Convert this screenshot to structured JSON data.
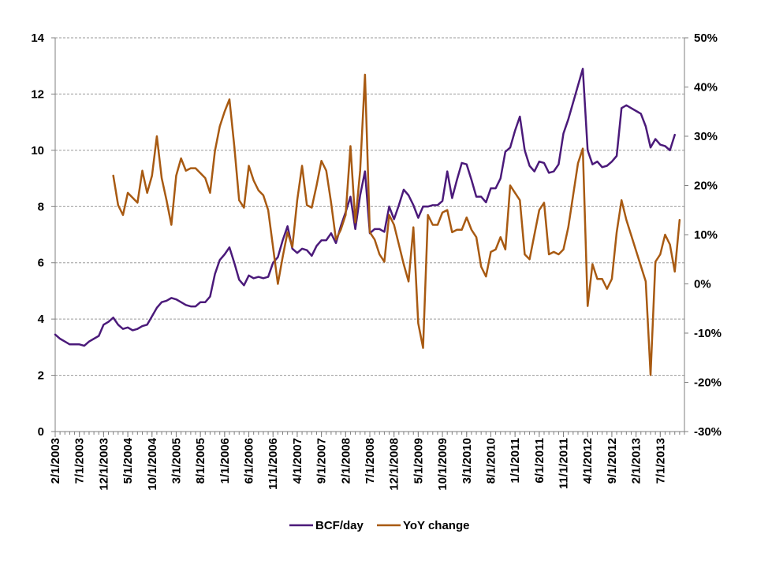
{
  "chart_data": {
    "type": "line",
    "title": "",
    "xlabel": "",
    "ylabel": "",
    "y2label": "",
    "grid": "horizontal-dashed",
    "legend_position": "bottom",
    "colors": {
      "bcf": "#4b1a7a",
      "yoy": "#a85a12",
      "grid": "#9a9a9a",
      "axis": "#7f7f7f"
    },
    "x_labels": [
      "2/1/2003",
      "7/1/2003",
      "12/1/2003",
      "5/1/2004",
      "10/1/2004",
      "3/1/2005",
      "8/1/2005",
      "1/1/2006",
      "6/1/2006",
      "11/1/2006",
      "4/1/2007",
      "9/1/2007",
      "2/1/2008",
      "7/1/2008",
      "12/1/2008",
      "5/1/2009",
      "10/1/2009",
      "3/1/2010",
      "8/1/2010",
      "1/1/2011",
      "6/1/2011",
      "11/1/2011",
      "4/1/2012",
      "9/1/2012",
      "2/1/2013",
      "7/1/2013"
    ],
    "y_left": {
      "min": 0,
      "max": 14,
      "ticks": [
        "0",
        "2",
        "4",
        "6",
        "8",
        "10",
        "12",
        "14"
      ]
    },
    "y_right": {
      "min": -30,
      "max": 50,
      "ticks": [
        "-30%",
        "-20%",
        "-10%",
        "0%",
        "10%",
        "20%",
        "30%",
        "40%",
        "50%"
      ]
    },
    "x_start": "2003-02",
    "x_end": "2013-12",
    "series": [
      {
        "name": "BCF/day",
        "axis": "left",
        "points": [
          [
            "2003-02",
            3.45
          ],
          [
            "2003-03",
            3.3
          ],
          [
            "2003-04",
            3.2
          ],
          [
            "2003-05",
            3.1
          ],
          [
            "2003-06",
            3.1
          ],
          [
            "2003-07",
            3.1
          ],
          [
            "2003-08",
            3.05
          ],
          [
            "2003-09",
            3.2
          ],
          [
            "2003-10",
            3.3
          ],
          [
            "2003-11",
            3.4
          ],
          [
            "2003-12",
            3.8
          ],
          [
            "2004-01",
            3.9
          ],
          [
            "2004-02",
            4.05
          ],
          [
            "2004-03",
            3.8
          ],
          [
            "2004-04",
            3.65
          ],
          [
            "2004-05",
            3.7
          ],
          [
            "2004-06",
            3.6
          ],
          [
            "2004-07",
            3.65
          ],
          [
            "2004-08",
            3.75
          ],
          [
            "2004-09",
            3.8
          ],
          [
            "2004-10",
            4.1
          ],
          [
            "2004-11",
            4.4
          ],
          [
            "2004-12",
            4.6
          ],
          [
            "2005-01",
            4.65
          ],
          [
            "2005-02",
            4.75
          ],
          [
            "2005-03",
            4.7
          ],
          [
            "2005-04",
            4.6
          ],
          [
            "2005-05",
            4.5
          ],
          [
            "2005-06",
            4.45
          ],
          [
            "2005-07",
            4.45
          ],
          [
            "2005-08",
            4.6
          ],
          [
            "2005-09",
            4.6
          ],
          [
            "2005-10",
            4.8
          ],
          [
            "2005-11",
            5.6
          ],
          [
            "2005-12",
            6.1
          ],
          [
            "2006-01",
            6.3
          ],
          [
            "2006-02",
            6.55
          ],
          [
            "2006-03",
            6.0
          ],
          [
            "2006-04",
            5.4
          ],
          [
            "2006-05",
            5.2
          ],
          [
            "2006-06",
            5.55
          ],
          [
            "2006-07",
            5.45
          ],
          [
            "2006-08",
            5.5
          ],
          [
            "2006-09",
            5.45
          ],
          [
            "2006-10",
            5.5
          ],
          [
            "2006-11",
            6.0
          ],
          [
            "2006-12",
            6.2
          ],
          [
            "2007-01",
            6.8
          ],
          [
            "2007-02",
            7.3
          ],
          [
            "2007-03",
            6.5
          ],
          [
            "2007-04",
            6.35
          ],
          [
            "2007-05",
            6.5
          ],
          [
            "2007-06",
            6.45
          ],
          [
            "2007-07",
            6.25
          ],
          [
            "2007-08",
            6.6
          ],
          [
            "2007-09",
            6.8
          ],
          [
            "2007-10",
            6.8
          ],
          [
            "2007-11",
            7.05
          ],
          [
            "2007-12",
            6.7
          ],
          [
            "2008-01",
            7.3
          ],
          [
            "2008-02",
            7.8
          ],
          [
            "2008-03",
            8.35
          ],
          [
            "2008-04",
            7.2
          ],
          [
            "2008-05",
            8.4
          ],
          [
            "2008-06",
            9.25
          ],
          [
            "2008-07",
            7.05
          ],
          [
            "2008-08",
            7.2
          ],
          [
            "2008-09",
            7.2
          ],
          [
            "2008-10",
            7.1
          ],
          [
            "2008-11",
            8.0
          ],
          [
            "2008-12",
            7.55
          ],
          [
            "2009-01",
            8.05
          ],
          [
            "2009-02",
            8.6
          ],
          [
            "2009-03",
            8.4
          ],
          [
            "2009-04",
            8.05
          ],
          [
            "2009-05",
            7.6
          ],
          [
            "2009-06",
            8.0
          ],
          [
            "2009-07",
            8.0
          ],
          [
            "2009-08",
            8.05
          ],
          [
            "2009-09",
            8.05
          ],
          [
            "2009-10",
            8.2
          ],
          [
            "2009-11",
            9.25
          ],
          [
            "2009-12",
            8.3
          ],
          [
            "2010-01",
            8.95
          ],
          [
            "2010-02",
            9.55
          ],
          [
            "2010-03",
            9.5
          ],
          [
            "2010-04",
            8.95
          ],
          [
            "2010-05",
            8.35
          ],
          [
            "2010-06",
            8.35
          ],
          [
            "2010-07",
            8.15
          ],
          [
            "2010-08",
            8.65
          ],
          [
            "2010-09",
            8.65
          ],
          [
            "2010-10",
            9.0
          ],
          [
            "2010-11",
            9.95
          ],
          [
            "2010-12",
            10.1
          ],
          [
            "2011-01",
            10.7
          ],
          [
            "2011-02",
            11.2
          ],
          [
            "2011-03",
            10.0
          ],
          [
            "2011-04",
            9.45
          ],
          [
            "2011-05",
            9.25
          ],
          [
            "2011-06",
            9.6
          ],
          [
            "2011-07",
            9.55
          ],
          [
            "2011-08",
            9.2
          ],
          [
            "2011-09",
            9.25
          ],
          [
            "2011-10",
            9.5
          ],
          [
            "2011-11",
            10.6
          ],
          [
            "2011-12",
            11.1
          ],
          [
            "2012-01",
            11.7
          ],
          [
            "2012-02",
            12.3
          ],
          [
            "2012-03",
            12.9
          ],
          [
            "2012-04",
            10.0
          ],
          [
            "2012-05",
            9.5
          ],
          [
            "2012-06",
            9.6
          ],
          [
            "2012-07",
            9.4
          ],
          [
            "2012-08",
            9.45
          ],
          [
            "2012-09",
            9.6
          ],
          [
            "2012-10",
            9.8
          ],
          [
            "2012-11",
            11.5
          ],
          [
            "2012-12",
            11.6
          ],
          [
            "2013-01",
            11.5
          ],
          [
            "2013-02",
            11.4
          ],
          [
            "2013-03",
            11.3
          ],
          [
            "2013-04",
            10.85
          ],
          [
            "2013-05",
            10.1
          ],
          [
            "2013-06",
            10.4
          ],
          [
            "2013-07",
            10.2
          ],
          [
            "2013-08",
            10.15
          ],
          [
            "2013-09",
            10.0
          ],
          [
            "2013-10",
            10.55
          ]
        ]
      },
      {
        "name": "YoY change",
        "axis": "right",
        "points": [
          [
            "2004-02",
            22.0
          ],
          [
            "2004-03",
            16.0
          ],
          [
            "2004-04",
            14.0
          ],
          [
            "2004-05",
            18.5
          ],
          [
            "2004-06",
            17.5
          ],
          [
            "2004-07",
            16.5
          ],
          [
            "2004-08",
            23.0
          ],
          [
            "2004-09",
            18.5
          ],
          [
            "2004-10",
            22.0
          ],
          [
            "2004-11",
            30.0
          ],
          [
            "2004-12",
            21.5
          ],
          [
            "2005-01",
            17.0
          ],
          [
            "2005-02",
            12.0
          ],
          [
            "2005-03",
            22.0
          ],
          [
            "2005-04",
            25.5
          ],
          [
            "2005-05",
            23.0
          ],
          [
            "2005-06",
            23.5
          ],
          [
            "2005-07",
            23.5
          ],
          [
            "2005-08",
            22.5
          ],
          [
            "2005-09",
            21.5
          ],
          [
            "2005-10",
            18.5
          ],
          [
            "2005-11",
            27.0
          ],
          [
            "2005-12",
            32.0
          ],
          [
            "2006-01",
            35.0
          ],
          [
            "2006-02",
            37.5
          ],
          [
            "2006-03",
            28.0
          ],
          [
            "2006-04",
            17.0
          ],
          [
            "2006-05",
            15.5
          ],
          [
            "2006-06",
            24.0
          ],
          [
            "2006-07",
            21.0
          ],
          [
            "2006-08",
            19.0
          ],
          [
            "2006-09",
            18.0
          ],
          [
            "2006-10",
            15.0
          ],
          [
            "2006-11",
            7.5
          ],
          [
            "2006-12",
            0.0
          ],
          [
            "2007-01",
            5.5
          ],
          [
            "2007-02",
            10.5
          ],
          [
            "2007-03",
            7.5
          ],
          [
            "2007-04",
            17.0
          ],
          [
            "2007-05",
            24.0
          ],
          [
            "2007-06",
            16.0
          ],
          [
            "2007-07",
            15.5
          ],
          [
            "2007-08",
            20.0
          ],
          [
            "2007-09",
            25.0
          ],
          [
            "2007-10",
            23.0
          ],
          [
            "2007-11",
            16.5
          ],
          [
            "2007-12",
            9.0
          ],
          [
            "2008-01",
            11.0
          ],
          [
            "2008-02",
            14.0
          ],
          [
            "2008-03",
            28.0
          ],
          [
            "2008-04",
            12.5
          ],
          [
            "2008-05",
            23.0
          ],
          [
            "2008-06",
            42.5
          ],
          [
            "2008-07",
            10.5
          ],
          [
            "2008-08",
            9.0
          ],
          [
            "2008-09",
            6.0
          ],
          [
            "2008-10",
            4.5
          ],
          [
            "2008-11",
            14.0
          ],
          [
            "2008-12",
            12.0
          ],
          [
            "2009-01",
            8.0
          ],
          [
            "2009-02",
            4.0
          ],
          [
            "2009-03",
            0.5
          ],
          [
            "2009-04",
            11.5
          ],
          [
            "2009-05",
            -8.0
          ],
          [
            "2009-06",
            -13.0
          ],
          [
            "2009-07",
            14.0
          ],
          [
            "2009-08",
            12.0
          ],
          [
            "2009-09",
            12.0
          ],
          [
            "2009-10",
            14.5
          ],
          [
            "2009-11",
            15.0
          ],
          [
            "2009-12",
            10.5
          ],
          [
            "2010-01",
            11.0
          ],
          [
            "2010-02",
            11.0
          ],
          [
            "2010-03",
            13.5
          ],
          [
            "2010-04",
            11.0
          ],
          [
            "2010-05",
            9.5
          ],
          [
            "2010-06",
            3.5
          ],
          [
            "2010-07",
            1.5
          ],
          [
            "2010-08",
            6.5
          ],
          [
            "2010-09",
            7.0
          ],
          [
            "2010-10",
            9.5
          ],
          [
            "2010-11",
            7.0
          ],
          [
            "2010-12",
            20.0
          ],
          [
            "2011-01",
            18.5
          ],
          [
            "2011-02",
            17.0
          ],
          [
            "2011-03",
            6.0
          ],
          [
            "2011-04",
            5.0
          ],
          [
            "2011-05",
            10.0
          ],
          [
            "2011-06",
            15.0
          ],
          [
            "2011-07",
            16.5
          ],
          [
            "2011-08",
            6.0
          ],
          [
            "2011-09",
            6.5
          ],
          [
            "2011-10",
            6.0
          ],
          [
            "2011-11",
            7.0
          ],
          [
            "2011-12",
            11.5
          ],
          [
            "2012-01",
            18.0
          ],
          [
            "2012-02",
            24.5
          ],
          [
            "2012-03",
            27.5
          ],
          [
            "2012-04",
            -4.5
          ],
          [
            "2012-05",
            4.0
          ],
          [
            "2012-06",
            1.0
          ],
          [
            "2012-07",
            1.0
          ],
          [
            "2012-08",
            -1.0
          ],
          [
            "2012-09",
            1.0
          ],
          [
            "2012-10",
            10.5
          ],
          [
            "2012-11",
            17.0
          ],
          [
            "2012-12",
            13.0
          ],
          [
            "2013-04",
            0.5
          ],
          [
            "2013-05",
            -18.5
          ],
          [
            "2013-06",
            4.5
          ],
          [
            "2013-07",
            6.0
          ],
          [
            "2013-08",
            10.0
          ],
          [
            "2013-09",
            8.0
          ],
          [
            "2013-10",
            2.5
          ],
          [
            "2013-11",
            13.0
          ]
        ]
      }
    ]
  }
}
